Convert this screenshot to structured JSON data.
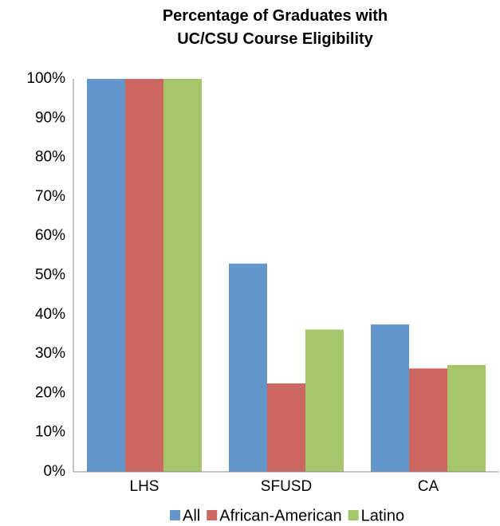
{
  "chart_data": {
    "type": "bar",
    "title": "Percentage of Graduates with UC/CSU Course Eligibility",
    "categories": [
      "LHS",
      "SFUSD",
      "CA"
    ],
    "series": [
      {
        "name": "All",
        "color": "#6397cc",
        "values": [
          100,
          53,
          37.5
        ]
      },
      {
        "name": "African-American",
        "color": "#cc6661",
        "values": [
          100,
          22.5,
          26.3
        ]
      },
      {
        "name": "Latino",
        "color": "#a7c56a",
        "values": [
          100,
          36.2,
          27.2
        ]
      }
    ],
    "ylim": [
      0,
      100
    ],
    "yticks": [
      {
        "value": 0,
        "label": "0%"
      },
      {
        "value": 10,
        "label": "10%"
      },
      {
        "value": 20,
        "label": "20%"
      },
      {
        "value": 30,
        "label": "30%"
      },
      {
        "value": 40,
        "label": "40%"
      },
      {
        "value": 50,
        "label": "50%"
      },
      {
        "value": 60,
        "label": "60%"
      },
      {
        "value": 70,
        "label": "70%"
      },
      {
        "value": 80,
        "label": "80%"
      },
      {
        "value": 90,
        "label": "90%"
      },
      {
        "value": 100,
        "label": "100%"
      }
    ],
    "grid": false,
    "legend": "bottom"
  }
}
